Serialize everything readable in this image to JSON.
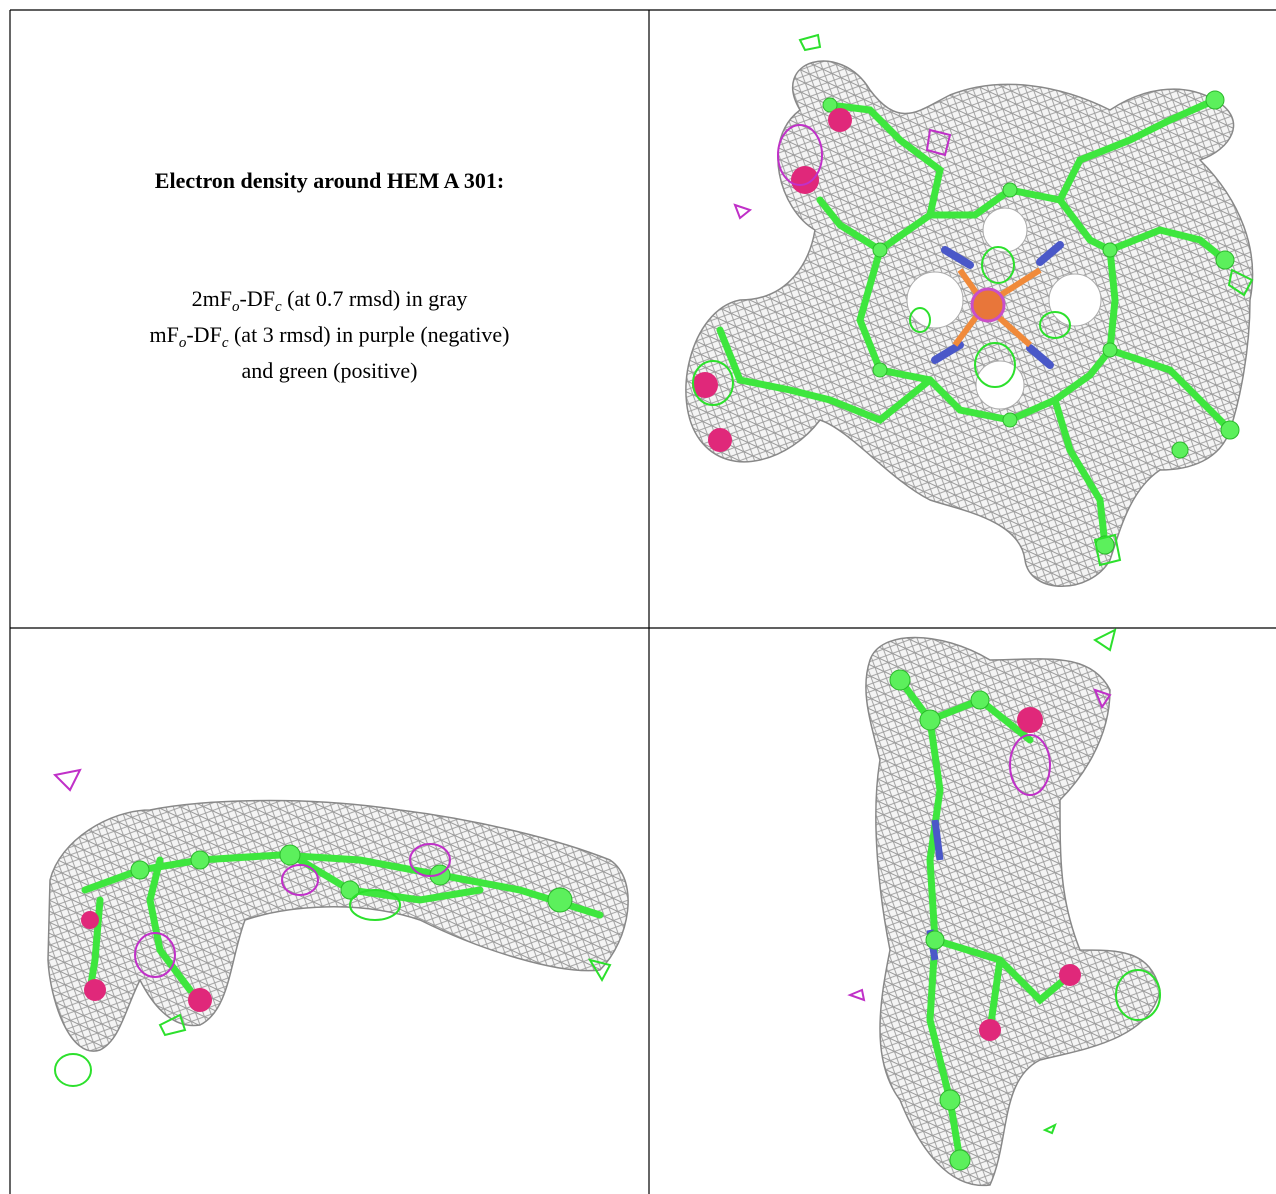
{
  "caption": {
    "title": "Electron density around HEM A 301:",
    "lines": [
      [
        "2mF",
        "o",
        "-DF",
        "c",
        " (at 0.7 rmsd) in gray"
      ],
      [
        "mF",
        "o",
        "-DF",
        "c",
        " (at 3 rmsd) in purple (negative)"
      ],
      [
        "and green (positive)"
      ]
    ]
  }
}
